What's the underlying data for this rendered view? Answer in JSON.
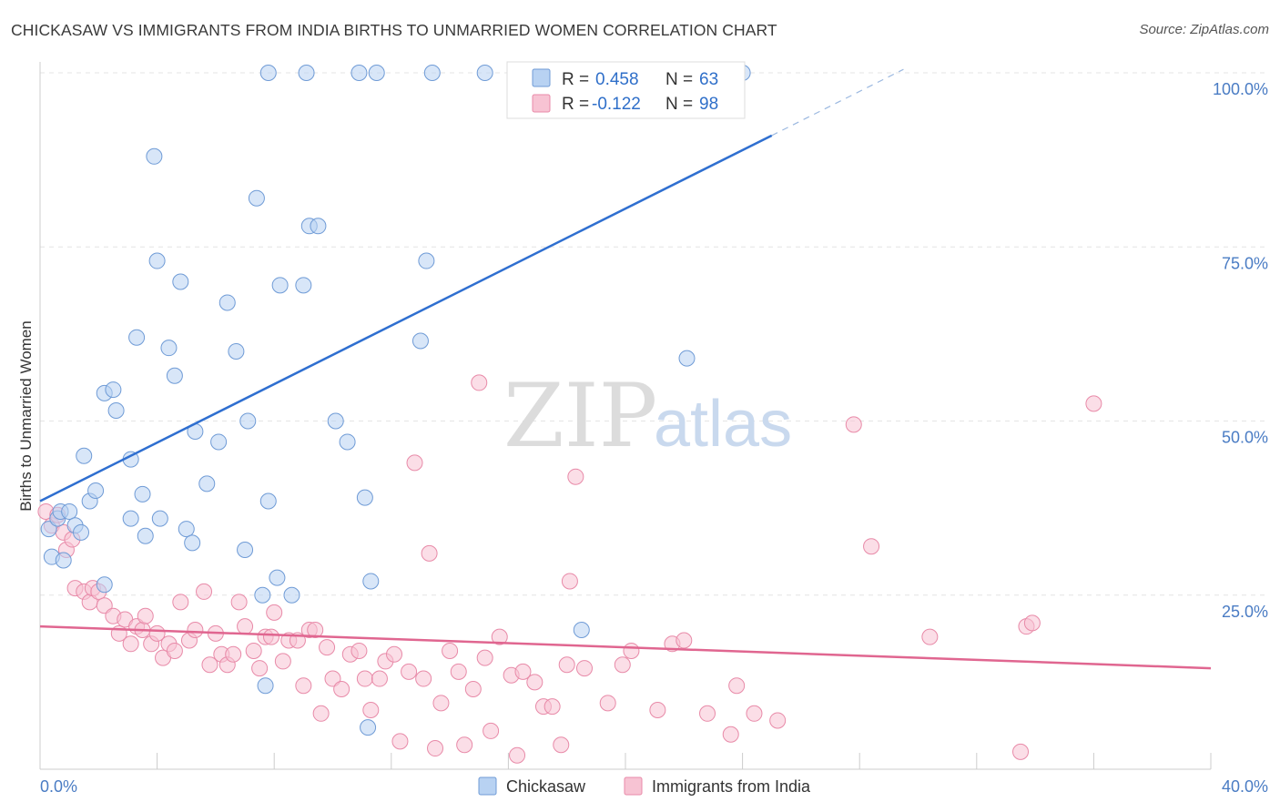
{
  "header": {
    "title": "CHICKASAW VS IMMIGRANTS FROM INDIA BIRTHS TO UNMARRIED WOMEN CORRELATION CHART",
    "source": "Source: ZipAtlas.com"
  },
  "watermark": {
    "zip": "ZIP",
    "atlas": "atlas"
  },
  "chart_data": {
    "type": "scatter",
    "title": "CHICKASAW VS IMMIGRANTS FROM INDIA BIRTHS TO UNMARRIED WOMEN CORRELATION CHART",
    "xlabel": "",
    "ylabel": "Births to Unmarried Women",
    "xlim": [
      0,
      40
    ],
    "ylim": [
      0,
      100
    ],
    "x_tick_labels": [
      "0.0%",
      "40.0%"
    ],
    "y_ticks": [
      25,
      50,
      75,
      100
    ],
    "y_tick_labels": [
      "25.0%",
      "50.0%",
      "75.0%",
      "100.0%"
    ],
    "grid": true,
    "legend_placement": "top-center",
    "colors": {
      "chickasaw_fill": "#b8d2f2",
      "chickasaw_stroke": "#6f9bd6",
      "chickasaw_line": "#2f6fd0",
      "india_fill": "#f7c3d3",
      "india_stroke": "#e88aa8",
      "india_line": "#e06690",
      "tick_text": "#4a7cc4"
    },
    "legend": {
      "r_label": "R =",
      "n_label": "N =",
      "entries": [
        {
          "r": "0.458",
          "n": "63"
        },
        {
          "r": "-0.122",
          "n": "98"
        }
      ]
    },
    "series": [
      {
        "name": "Chickasaw",
        "trend": {
          "x0": 0,
          "y0": 38.5,
          "x1": 25,
          "y1": 91,
          "dash_to_x": 29.5,
          "dash_to_y": 100.5
        },
        "points": [
          [
            0.3,
            34.5
          ],
          [
            0.4,
            30.5
          ],
          [
            0.6,
            36
          ],
          [
            0.7,
            37
          ],
          [
            0.8,
            30
          ],
          [
            1.0,
            37
          ],
          [
            1.2,
            35
          ],
          [
            1.4,
            34
          ],
          [
            1.5,
            45
          ],
          [
            1.7,
            38.5
          ],
          [
            1.9,
            40
          ],
          [
            2.2,
            26.5
          ],
          [
            2.2,
            54
          ],
          [
            2.5,
            54.5
          ],
          [
            2.6,
            51.5
          ],
          [
            3.1,
            36
          ],
          [
            3.1,
            44.5
          ],
          [
            3.3,
            62
          ],
          [
            3.5,
            39.5
          ],
          [
            3.6,
            33.5
          ],
          [
            3.9,
            88
          ],
          [
            4.0,
            73
          ],
          [
            4.1,
            36
          ],
          [
            4.4,
            60.5
          ],
          [
            4.6,
            56.5
          ],
          [
            4.8,
            70
          ],
          [
            5.0,
            34.5
          ],
          [
            5.2,
            32.5
          ],
          [
            5.3,
            48.5
          ],
          [
            5.7,
            41
          ],
          [
            6.1,
            47
          ],
          [
            6.4,
            67
          ],
          [
            6.7,
            60
          ],
          [
            7.0,
            31.5
          ],
          [
            7.1,
            50
          ],
          [
            7.4,
            82
          ],
          [
            7.6,
            25
          ],
          [
            7.8,
            38.5
          ],
          [
            8.1,
            27.5
          ],
          [
            8.2,
            69.5
          ],
          [
            8.6,
            25
          ],
          [
            9.0,
            69.5
          ],
          [
            9.2,
            78
          ],
          [
            9.5,
            78
          ],
          [
            10.1,
            50
          ],
          [
            10.5,
            47
          ],
          [
            11.1,
            39
          ],
          [
            11.2,
            6
          ],
          [
            11.3,
            27
          ],
          [
            13.0,
            61.5
          ],
          [
            13.2,
            73
          ],
          [
            18.5,
            20
          ],
          [
            22.1,
            59
          ],
          [
            7.7,
            12
          ],
          [
            7.8,
            100
          ],
          [
            9.1,
            100
          ],
          [
            10.9,
            100
          ],
          [
            11.5,
            100
          ],
          [
            13.4,
            100
          ],
          [
            15.2,
            100
          ],
          [
            17.6,
            100
          ],
          [
            22.0,
            100
          ],
          [
            24.0,
            100
          ]
        ]
      },
      {
        "name": "Immigrants from India",
        "trend": {
          "x0": 0,
          "y0": 20.5,
          "x1": 40,
          "y1": 14.5
        },
        "points": [
          [
            0.2,
            37
          ],
          [
            0.4,
            35
          ],
          [
            0.6,
            36.5
          ],
          [
            0.8,
            34
          ],
          [
            0.9,
            31.5
          ],
          [
            1.1,
            33
          ],
          [
            1.2,
            26
          ],
          [
            1.5,
            25.5
          ],
          [
            1.7,
            24
          ],
          [
            1.8,
            26
          ],
          [
            2.0,
            25.5
          ],
          [
            2.2,
            23.5
          ],
          [
            2.5,
            22
          ],
          [
            2.7,
            19.5
          ],
          [
            2.9,
            21.5
          ],
          [
            3.1,
            18
          ],
          [
            3.3,
            20.5
          ],
          [
            3.5,
            20
          ],
          [
            3.6,
            22
          ],
          [
            3.8,
            18
          ],
          [
            4.0,
            19.5
          ],
          [
            4.2,
            16
          ],
          [
            4.4,
            18
          ],
          [
            4.6,
            17
          ],
          [
            4.8,
            24
          ],
          [
            5.1,
            18.5
          ],
          [
            5.3,
            20
          ],
          [
            5.6,
            25.5
          ],
          [
            5.8,
            15
          ],
          [
            6.0,
            19.5
          ],
          [
            6.2,
            16.5
          ],
          [
            6.4,
            15
          ],
          [
            6.6,
            16.5
          ],
          [
            6.8,
            24
          ],
          [
            7.0,
            20.5
          ],
          [
            7.3,
            17
          ],
          [
            7.5,
            14.5
          ],
          [
            7.7,
            19
          ],
          [
            7.9,
            19
          ],
          [
            8.0,
            22.5
          ],
          [
            8.3,
            15.5
          ],
          [
            8.5,
            18.5
          ],
          [
            8.8,
            18.5
          ],
          [
            9.0,
            12
          ],
          [
            9.2,
            20
          ],
          [
            9.4,
            20
          ],
          [
            9.6,
            8
          ],
          [
            9.8,
            17.5
          ],
          [
            10.0,
            13
          ],
          [
            10.3,
            11.5
          ],
          [
            10.6,
            16.5
          ],
          [
            10.9,
            17
          ],
          [
            11.1,
            13
          ],
          [
            11.3,
            8.5
          ],
          [
            11.6,
            13
          ],
          [
            11.8,
            15.5
          ],
          [
            12.1,
            16.5
          ],
          [
            12.3,
            4
          ],
          [
            12.6,
            14
          ],
          [
            12.8,
            44
          ],
          [
            13.1,
            13
          ],
          [
            13.3,
            31
          ],
          [
            13.5,
            3
          ],
          [
            13.7,
            9.5
          ],
          [
            14.0,
            17
          ],
          [
            14.3,
            14
          ],
          [
            14.5,
            3.5
          ],
          [
            14.8,
            11.5
          ],
          [
            15.0,
            55.5
          ],
          [
            15.2,
            16
          ],
          [
            15.4,
            5.5
          ],
          [
            15.7,
            19
          ],
          [
            16.1,
            13.5
          ],
          [
            16.3,
            2
          ],
          [
            16.5,
            14
          ],
          [
            16.9,
            12.5
          ],
          [
            17.2,
            9
          ],
          [
            17.5,
            9
          ],
          [
            17.8,
            3.5
          ],
          [
            18.0,
            15
          ],
          [
            18.1,
            27
          ],
          [
            18.3,
            42
          ],
          [
            18.6,
            14.5
          ],
          [
            19.4,
            9.5
          ],
          [
            19.9,
            15
          ],
          [
            20.2,
            17
          ],
          [
            21.1,
            8.5
          ],
          [
            21.6,
            18
          ],
          [
            22.0,
            18.5
          ],
          [
            22.8,
            8
          ],
          [
            23.6,
            5
          ],
          [
            23.8,
            12
          ],
          [
            24.4,
            8
          ],
          [
            25.2,
            7
          ],
          [
            27.8,
            49.5
          ],
          [
            28.4,
            32
          ],
          [
            30.4,
            19
          ],
          [
            33.5,
            2.5
          ]
        ]
      }
    ],
    "extra_points_india": [
      [
        33.7,
        20.5
      ],
      [
        33.9,
        21
      ],
      [
        36.0,
        52.5
      ]
    ]
  },
  "legend_bottom": {
    "items": [
      {
        "label": "Chickasaw"
      },
      {
        "label": "Immigrants from India"
      }
    ]
  }
}
